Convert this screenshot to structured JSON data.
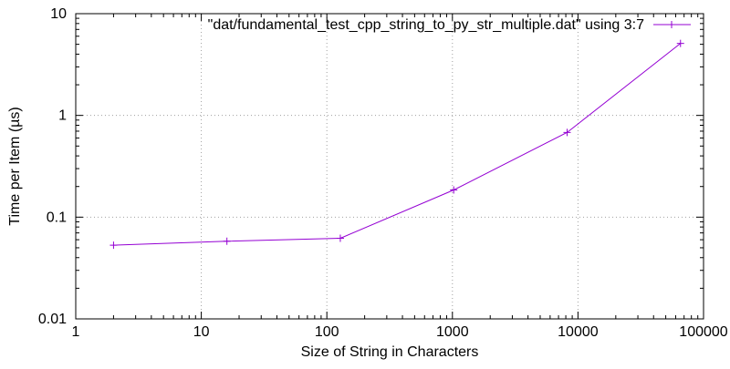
{
  "chart_data": {
    "type": "line",
    "xlabel": "Size of String in Characters",
    "ylabel": "Time per Item (µs)",
    "xscale": "log",
    "yscale": "log",
    "xlim": [
      1,
      100000
    ],
    "ylim": [
      0.01,
      10
    ],
    "grid": true,
    "legend_position": "top-right",
    "x_ticks": [
      {
        "value": 1,
        "label": "1"
      },
      {
        "value": 10,
        "label": "10"
      },
      {
        "value": 100,
        "label": "100"
      },
      {
        "value": 1000,
        "label": "1000"
      },
      {
        "value": 10000,
        "label": "10000"
      },
      {
        "value": 100000,
        "label": "100000"
      }
    ],
    "y_ticks": [
      {
        "value": 0.01,
        "label": "0.01"
      },
      {
        "value": 0.1,
        "label": "0.1"
      },
      {
        "value": 1,
        "label": "1"
      },
      {
        "value": 10,
        "label": "10"
      }
    ],
    "series": [
      {
        "name": "\"dat/fundamental_test_cpp_string_to_py_str_multiple.dat\" using 3:7",
        "color": "#9400d3",
        "marker": "plus",
        "x": [
          2,
          16,
          128,
          1024,
          8192,
          65536
        ],
        "y": [
          0.053,
          0.058,
          0.062,
          0.185,
          0.68,
          5.1
        ]
      }
    ]
  }
}
